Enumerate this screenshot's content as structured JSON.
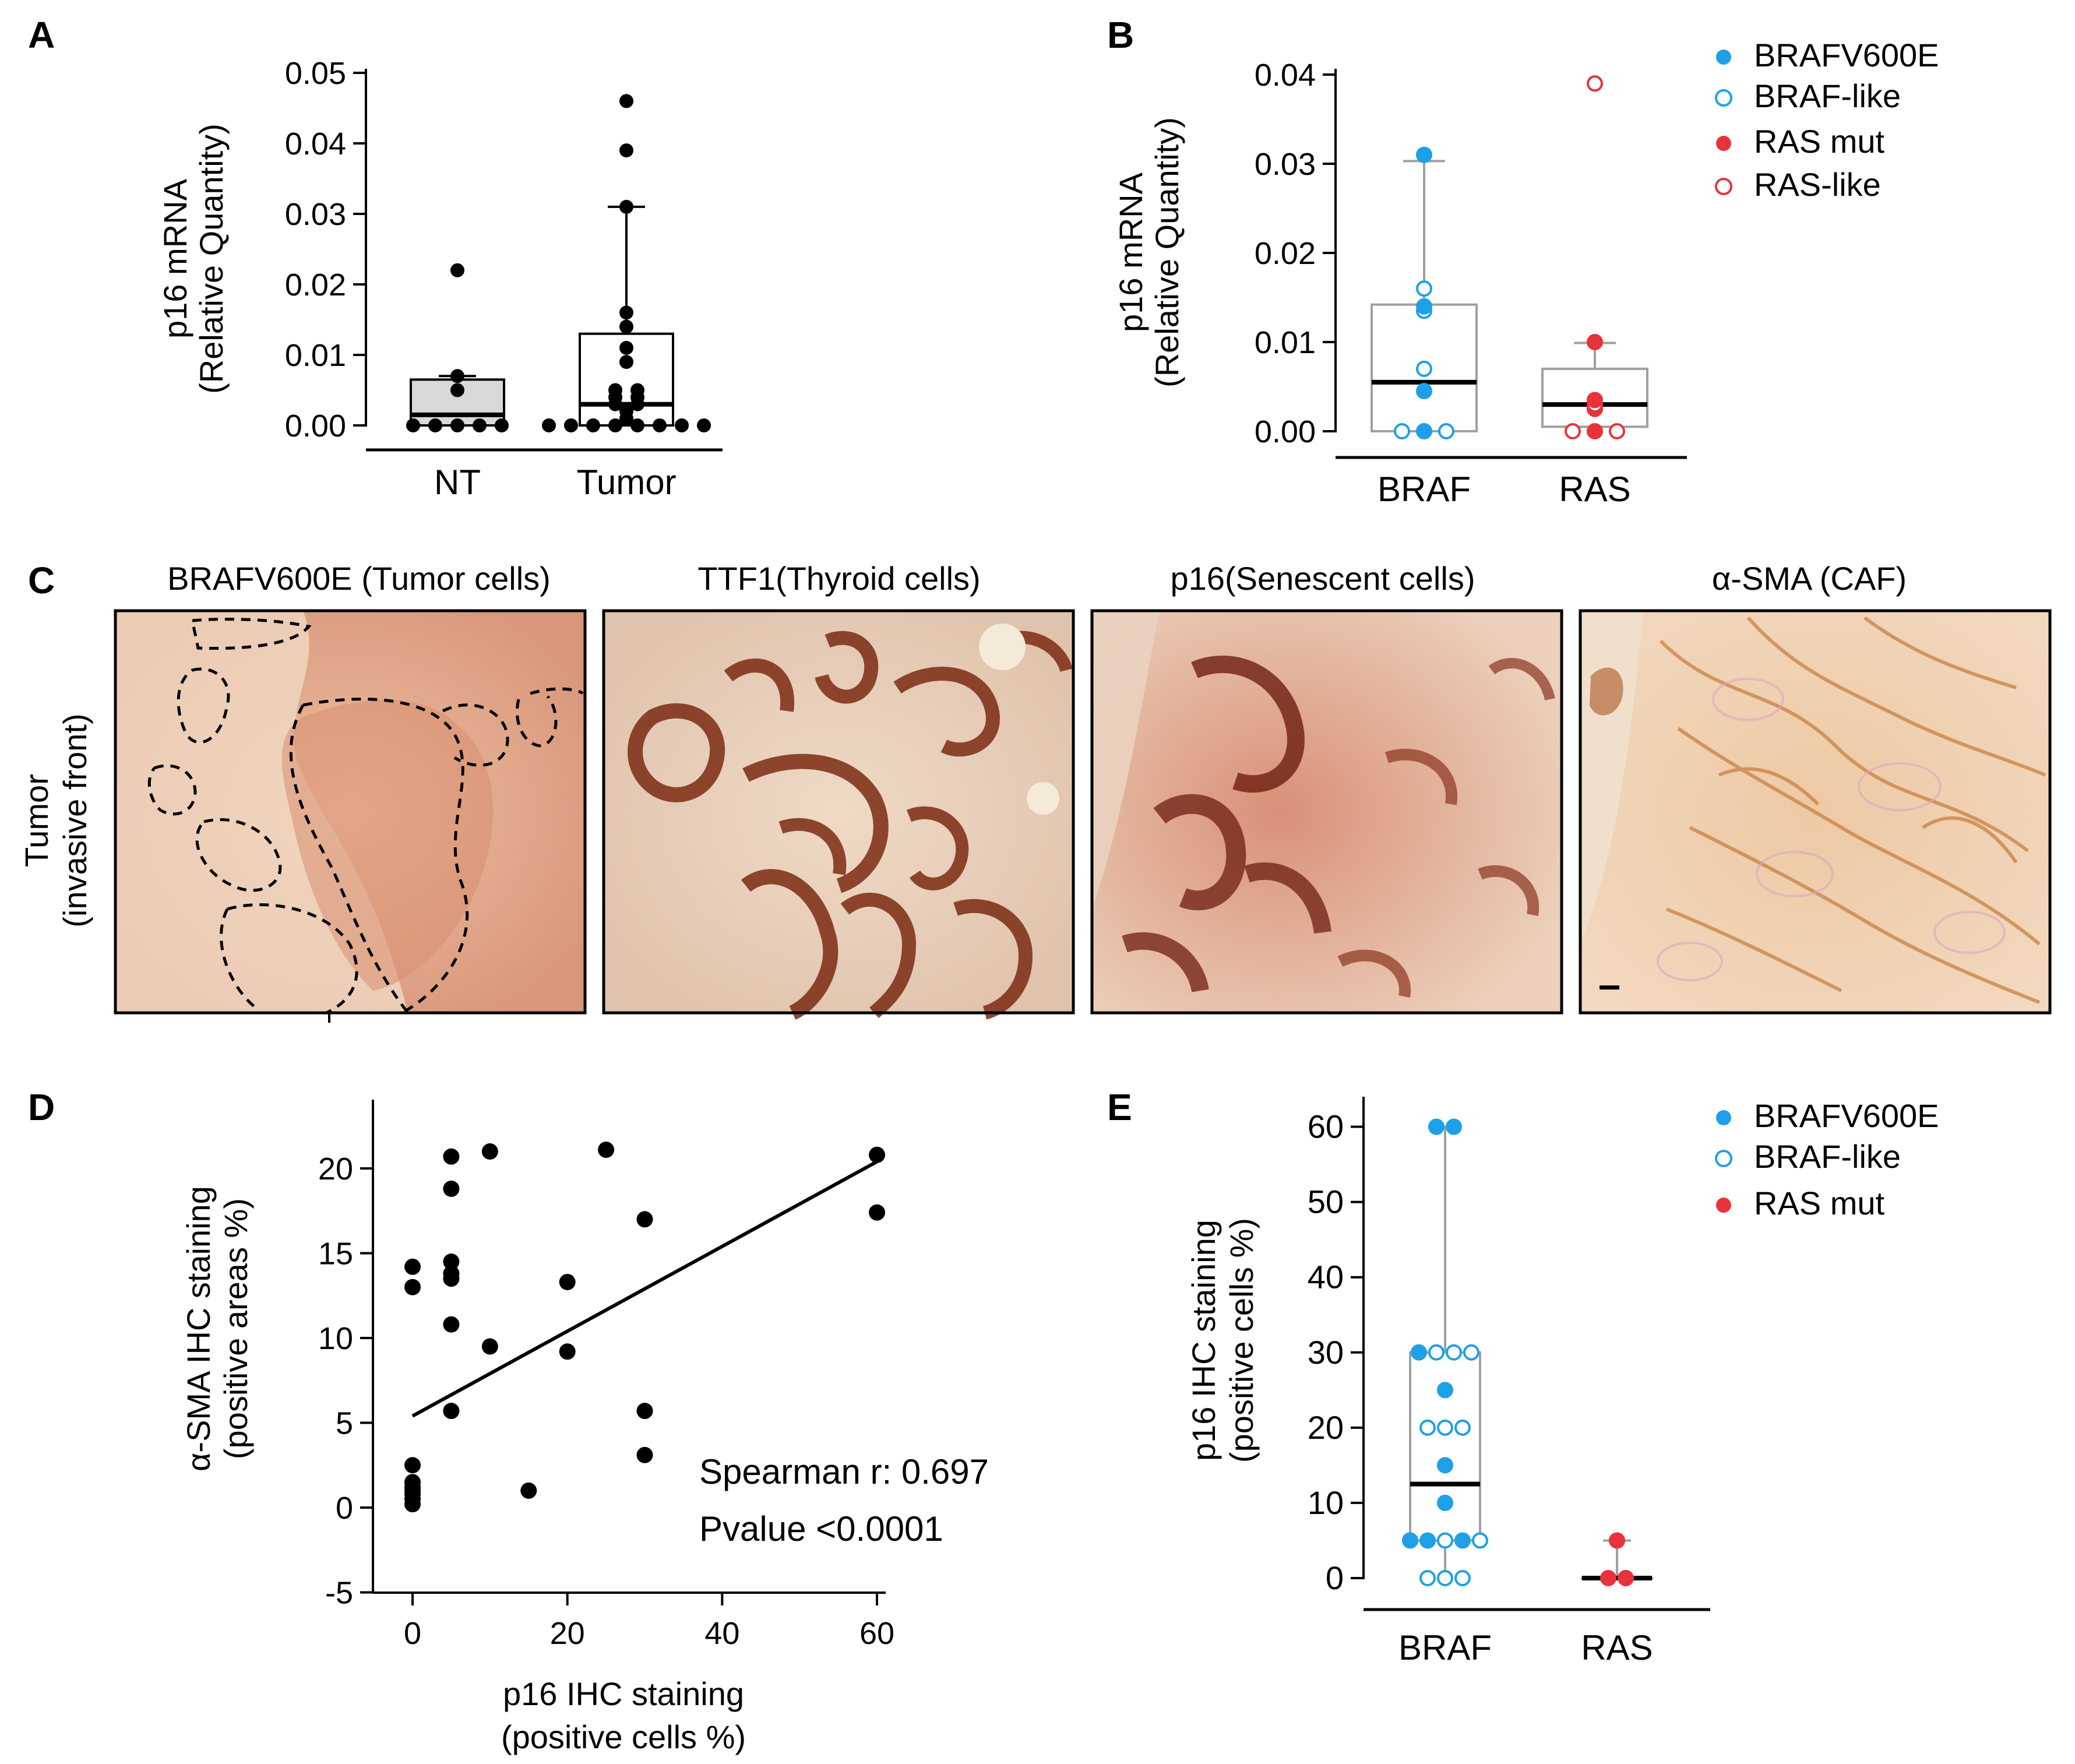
{
  "colors": {
    "braf": "#1ea0e6",
    "ras": "#e8333c",
    "ink": "#000000",
    "box_a": "#d9d9d9",
    "box_b": "#a0a0a0"
  },
  "chart_data": [
    {
      "panel": "A",
      "type": "box",
      "ylabel_line1": "p16 mRNA",
      "ylabel_line2": "(Relative Quantity)",
      "ylim": [
        0,
        0.05
      ],
      "yticks": [
        0.0,
        0.01,
        0.02,
        0.03,
        0.04,
        0.05
      ],
      "ytick_labels": [
        "0.00",
        "0.01",
        "0.02",
        "0.03",
        "0.04",
        "0.05"
      ],
      "categories": [
        "NT",
        "Tumor"
      ],
      "groups": [
        {
          "name": "NT",
          "min": 0.0,
          "q1": 0.0,
          "median": 0.0015,
          "q3": 0.0065,
          "max": 0.007,
          "points": [
            0.0,
            0.0,
            0.0,
            0.0,
            0.0,
            0.005,
            0.007,
            0.022
          ]
        },
        {
          "name": "Tumor",
          "min": 0.0,
          "q1": 0.0,
          "median": 0.003,
          "q3": 0.013,
          "max": 0.031,
          "points": [
            0.0,
            0.0,
            0.0,
            0.0,
            0.0,
            0.0,
            0.0,
            0.0,
            0.001,
            0.002,
            0.003,
            0.003,
            0.004,
            0.004,
            0.005,
            0.005,
            0.009,
            0.011,
            0.014,
            0.016,
            0.031,
            0.039,
            0.046
          ]
        }
      ]
    },
    {
      "panel": "B",
      "type": "box",
      "ylabel_line1": "p16 mRNA",
      "ylabel_line2": "(Relative Quantity)",
      "ylim": [
        0,
        0.04
      ],
      "yticks": [
        0.0,
        0.01,
        0.02,
        0.03,
        0.04
      ],
      "ytick_labels": [
        "0.00",
        "0.01",
        "0.02",
        "0.03",
        "0.04"
      ],
      "categories": [
        "BRAF",
        "RAS"
      ],
      "groups": [
        {
          "name": "BRAF",
          "min": 0.0,
          "q1": 0.0,
          "median": 0.0055,
          "q3": 0.0142,
          "max": 0.0303,
          "points": [
            {
              "v": 0.031,
              "t": "BRAFV600E"
            },
            {
              "v": 0.016,
              "t": "BRAF-like"
            },
            {
              "v": 0.014,
              "t": "BRAFV600E"
            },
            {
              "v": 0.0135,
              "t": "BRAF-like"
            },
            {
              "v": 0.007,
              "t": "BRAF-like"
            },
            {
              "v": 0.0045,
              "t": "BRAFV600E"
            },
            {
              "v": 0.0,
              "t": "BRAF-like"
            },
            {
              "v": 0.0,
              "t": "BRAFV600E"
            },
            {
              "v": 0.0,
              "t": "BRAF-like"
            }
          ]
        },
        {
          "name": "RAS",
          "min": 0.0,
          "q1": 0.0005,
          "median": 0.003,
          "q3": 0.007,
          "max": 0.0099,
          "points": [
            {
              "v": 0.039,
              "t": "RAS-like"
            },
            {
              "v": 0.01,
              "t": "RAS mut"
            },
            {
              "v": 0.0035,
              "t": "RAS mut"
            },
            {
              "v": 0.003,
              "t": "RAS-like"
            },
            {
              "v": 0.0025,
              "t": "RAS mut"
            },
            {
              "v": 0.0,
              "t": "RAS-like"
            },
            {
              "v": 0.0,
              "t": "RAS mut"
            },
            {
              "v": 0.0,
              "t": "RAS-like"
            }
          ]
        }
      ],
      "legend": [
        "BRAFV600E",
        "BRAF-like",
        "RAS mut",
        "RAS-like"
      ]
    },
    {
      "panel": "D",
      "type": "scatter",
      "xlabel_line1": "p16 IHC staining",
      "xlabel_line2": "(positive cells %)",
      "ylabel_line1": "α-SMA IHC staining",
      "ylabel_line2": "(positive areas %)",
      "xlim": [
        -3,
        62
      ],
      "ylim": [
        -5,
        24
      ],
      "xticks": [
        0,
        20,
        40,
        60
      ],
      "yticks": [
        -5,
        0,
        5,
        10,
        15,
        20
      ],
      "points": [
        [
          0,
          14.2
        ],
        [
          0,
          13.0
        ],
        [
          0,
          2.5
        ],
        [
          0,
          1.5
        ],
        [
          0,
          1.2
        ],
        [
          0,
          1.0
        ],
        [
          0,
          0.8
        ],
        [
          0,
          0.5
        ],
        [
          0,
          0.2
        ],
        [
          5,
          20.7
        ],
        [
          5,
          18.8
        ],
        [
          5,
          14.5
        ],
        [
          5,
          13.8
        ],
        [
          5,
          13.5
        ],
        [
          5,
          10.8
        ],
        [
          5,
          5.7
        ],
        [
          10,
          21.0
        ],
        [
          10,
          9.5
        ],
        [
          15,
          1.0
        ],
        [
          20,
          13.3
        ],
        [
          20,
          9.2
        ],
        [
          25,
          21.1
        ],
        [
          30,
          17.0
        ],
        [
          30,
          5.7
        ],
        [
          30,
          3.1
        ],
        [
          60,
          20.8
        ],
        [
          60,
          17.4
        ]
      ],
      "fit_line": [
        [
          0,
          5.4
        ],
        [
          60,
          20.4
        ]
      ],
      "annotation_line1": "Spearman r: 0.697",
      "annotation_line2": "Pvalue <0.0001"
    },
    {
      "panel": "E",
      "type": "box",
      "ylabel_line1": "p16 IHC staining",
      "ylabel_line2": "(positive cells %)",
      "ylim": [
        0,
        65
      ],
      "yticks": [
        0,
        10,
        20,
        30,
        40,
        50,
        60
      ],
      "categories": [
        "BRAF",
        "RAS"
      ],
      "groups": [
        {
          "name": "BRAF",
          "min": 0,
          "q1": 5,
          "median": 12.5,
          "q3": 30,
          "max": 60,
          "points": [
            {
              "v": 60,
              "t": "BRAFV600E"
            },
            {
              "v": 60,
              "t": "BRAFV600E"
            },
            {
              "v": 30,
              "t": "BRAFV600E"
            },
            {
              "v": 30,
              "t": "BRAF-like"
            },
            {
              "v": 30,
              "t": "BRAF-like"
            },
            {
              "v": 30,
              "t": "BRAF-like"
            },
            {
              "v": 25,
              "t": "BRAFV600E"
            },
            {
              "v": 20,
              "t": "BRAF-like"
            },
            {
              "v": 20,
              "t": "BRAF-like"
            },
            {
              "v": 20,
              "t": "BRAF-like"
            },
            {
              "v": 15,
              "t": "BRAFV600E"
            },
            {
              "v": 10,
              "t": "BRAFV600E"
            },
            {
              "v": 5,
              "t": "BRAFV600E"
            },
            {
              "v": 5,
              "t": "BRAFV600E"
            },
            {
              "v": 5,
              "t": "BRAF-like"
            },
            {
              "v": 5,
              "t": "BRAFV600E"
            },
            {
              "v": 5,
              "t": "BRAF-like"
            },
            {
              "v": 0,
              "t": "BRAF-like"
            },
            {
              "v": 0,
              "t": "BRAF-like"
            },
            {
              "v": 0,
              "t": "BRAF-like"
            }
          ]
        },
        {
          "name": "RAS",
          "min": 0,
          "q1": 0,
          "median": 0,
          "q3": 0,
          "max": 5,
          "points": [
            {
              "v": 5,
              "t": "RAS mut"
            },
            {
              "v": 0,
              "t": "RAS mut"
            },
            {
              "v": 0,
              "t": "RAS mut"
            }
          ]
        }
      ],
      "legend": [
        "BRAFV600E",
        "BRAF-like",
        "RAS mut"
      ]
    }
  ],
  "panel_c": {
    "letter": "C",
    "row_label_line1": "Tumor",
    "row_label_line2": "(invasive front)",
    "images": [
      {
        "title": "BRAFV600E (Tumor cells)"
      },
      {
        "title": "TTF1(Thyroid cells)"
      },
      {
        "title": "p16(Senescent cells)"
      },
      {
        "title": "α-SMA (CAF)"
      }
    ]
  },
  "panel_letters": {
    "a": "A",
    "b": "B",
    "d": "D",
    "e": "E"
  }
}
